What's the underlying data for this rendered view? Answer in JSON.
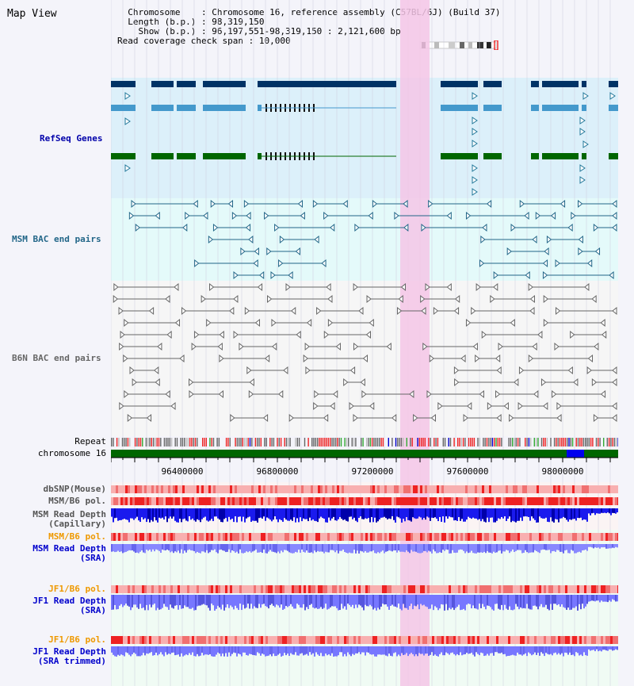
{
  "view_title": "Map View",
  "header": {
    "chromosome_label": "Chromosome",
    "chromosome_value": "Chromosome 16, reference assembly (C57BL/6J) (Build 37)",
    "length_label": "Length (b.p.)",
    "length_value": "98,319,150",
    "show_label": "Show (b.p.)",
    "show_value": "96,197,551-98,319,150 : 2,121,600 bp",
    "coverage_label": "Read coverage check span",
    "coverage_value": "10,000"
  },
  "tracks": {
    "refseq": "RefSeq Genes",
    "msm_bac": "MSM BAC end pairs",
    "b6n_bac": "B6N BAC end pairs",
    "repeat": "Repeat",
    "chromosome": "chromosome 16",
    "dbsnp": "dbSNP(Mouse)",
    "msm_b6_pol_1": "MSM/B6 pol.",
    "msm_depth_cap_1": "MSM Read Depth",
    "msm_depth_cap_2": "(Capillary)",
    "msm_b6_pol_2": "MSM/B6 pol.",
    "msm_depth_sra_1": "MSM Read Depth",
    "msm_depth_sra_2": "(SRA)",
    "jf1_b6_pol_1": "JF1/B6 pol.",
    "jf1_depth_sra_1": "JF1 Read Depth",
    "jf1_depth_sra_2": "(SRA)",
    "jf1_b6_pol_2": "JF1/B6 pol.",
    "jf1_depth_trim_1": "JF1 Read Depth",
    "jf1_depth_trim_2": "(SRA trimmed)"
  },
  "axis": {
    "ticks": [
      "96400000",
      "96800000",
      "97200000",
      "97600000",
      "98000000"
    ]
  },
  "colors": {
    "refseq_dark": "#003366",
    "refseq_mid": "#4499cc",
    "refseq_green": "#006600",
    "msm_bac": "#226688",
    "b6n_bac": "#666666",
    "highlight": "#f5c6e6",
    "depth_blue": "#1a1aee",
    "depth_light": "#7777ff",
    "pol_red": "#ee2222",
    "label_orange": "#ee9900",
    "label_blue": "#0000cc"
  }
}
